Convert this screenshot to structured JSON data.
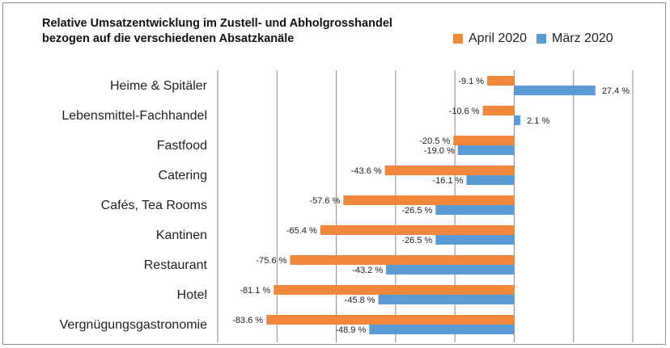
{
  "chart_data": {
    "type": "bar",
    "orientation": "horizontal",
    "title": "Relative Umsatzentwicklung im Zustell- und Abholgrosshandel\nbezogen auf die verschiedenen Absatzkanäle",
    "categories": [
      "Heime & Spitäler",
      "Lebensmittel-Fachhandel",
      "Fastfood",
      "Catering",
      "Cafés, Tea Rooms",
      "Kantinen",
      "Restaurant",
      "Hotel",
      "Vergnügungsgastronomie"
    ],
    "series": [
      {
        "name": "April 2020",
        "color": "#f0873a",
        "values": [
          -9.1,
          -10.6,
          -20.5,
          -43.6,
          -57.6,
          -65.4,
          -75.6,
          -81.1,
          -83.6
        ],
        "labels": [
          "-9.1 %",
          "-10.6 %",
          "-20.5 %",
          "-43.6 %",
          "-57.6 %",
          "-65.4 %",
          "-75.6 %",
          "-81.1 %",
          "-83.6 %"
        ]
      },
      {
        "name": "März 2020",
        "color": "#5b9bd5",
        "values": [
          27.4,
          2.1,
          -19.0,
          -16.1,
          -26.5,
          -26.5,
          -43.2,
          -45.8,
          -48.9
        ],
        "labels": [
          "27.4 %",
          "2.1 %",
          "-19.0 %",
          "-16.1 %",
          "-26.5 %",
          "-26.5 %",
          "-43.2 %",
          "-45.8 %",
          "-48.9 %"
        ]
      }
    ],
    "xlim": [
      -100,
      40
    ],
    "grid": true,
    "legend_position": "top-right"
  }
}
